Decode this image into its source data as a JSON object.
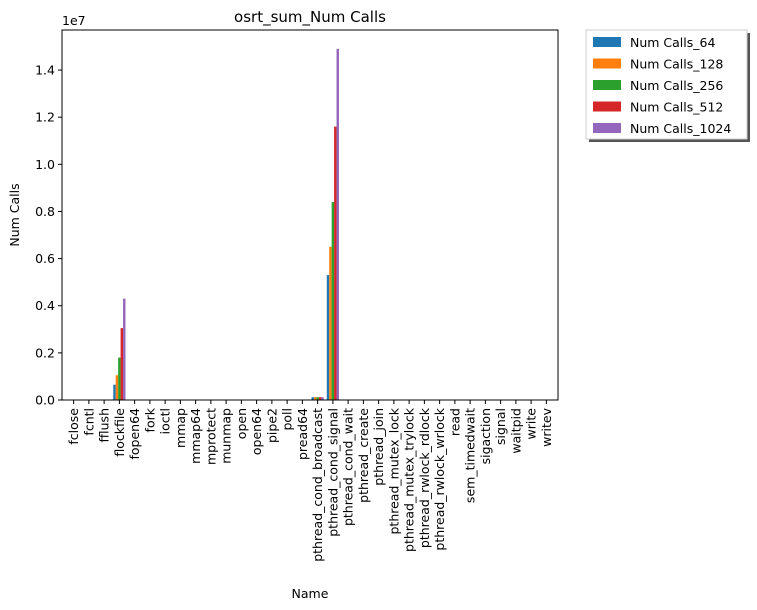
{
  "chart_data": {
    "type": "bar",
    "title": "osrt_sum_Num Calls",
    "xlabel": "Name",
    "ylabel": "Num Calls",
    "y_offset_label": "1e7",
    "ylim": [
      0,
      1.57
    ],
    "yticks": [
      0.0,
      0.2,
      0.4,
      0.6,
      0.8,
      1.0,
      1.2,
      1.4
    ],
    "ytick_labels": [
      "0.0",
      "0.2",
      "0.4",
      "0.6",
      "0.8",
      "1.0",
      "1.2",
      "1.4"
    ],
    "grid": false,
    "legend_position": "outside-top-right",
    "categories": [
      "fclose",
      "fcntl",
      "fflush",
      "flockfile",
      "fopen64",
      "fork",
      "ioctl",
      "mmap",
      "mmap64",
      "mprotect",
      "munmap",
      "open",
      "open64",
      "pipe2",
      "poll",
      "pread64",
      "pthread_cond_broadcast",
      "pthread_cond_signal",
      "pthread_cond_wait",
      "pthread_create",
      "pthread_join",
      "pthread_mutex_lock",
      "pthread_mutex_trylock",
      "pthread_rwlock_rdlock",
      "pthread_rwlock_wrlock",
      "read",
      "sem_timedwait",
      "sigaction",
      "signal",
      "waitpid",
      "write",
      "writev"
    ],
    "series": [
      {
        "name": "Num Calls_64",
        "color": "#1f77b4",
        "values": [
          0,
          0,
          0,
          0.065,
          0,
          0,
          0,
          0,
          0,
          0,
          0,
          0,
          0,
          0,
          0,
          0,
          0.012,
          0.53,
          0,
          0,
          0,
          0,
          0,
          0,
          0,
          0,
          0,
          0,
          0,
          0,
          0,
          0
        ]
      },
      {
        "name": "Num Calls_128",
        "color": "#ff7f0e",
        "values": [
          0,
          0,
          0,
          0.105,
          0,
          0,
          0,
          0,
          0,
          0,
          0,
          0,
          0,
          0,
          0,
          0,
          0.012,
          0.65,
          0,
          0,
          0,
          0,
          0,
          0,
          0,
          0,
          0,
          0,
          0,
          0,
          0,
          0
        ]
      },
      {
        "name": "Num Calls_256",
        "color": "#2ca02c",
        "values": [
          0,
          0,
          0,
          0.18,
          0,
          0,
          0,
          0,
          0,
          0,
          0,
          0,
          0,
          0,
          0,
          0,
          0.012,
          0.84,
          0,
          0,
          0,
          0,
          0,
          0,
          0,
          0,
          0,
          0,
          0,
          0,
          0,
          0
        ]
      },
      {
        "name": "Num Calls_512",
        "color": "#d62728",
        "values": [
          0,
          0,
          0,
          0.305,
          0,
          0,
          0,
          0,
          0,
          0,
          0,
          0,
          0,
          0,
          0,
          0,
          0.012,
          1.16,
          0,
          0,
          0,
          0,
          0,
          0,
          0,
          0,
          0,
          0,
          0,
          0,
          0,
          0
        ]
      },
      {
        "name": "Num Calls_1024",
        "color": "#9467bd",
        "values": [
          0,
          0,
          0,
          0.43,
          0,
          0,
          0,
          0,
          0,
          0,
          0,
          0,
          0,
          0,
          0,
          0,
          0.012,
          1.49,
          0,
          0,
          0,
          0,
          0,
          0,
          0,
          0,
          0,
          0,
          0,
          0,
          0,
          0
        ]
      }
    ]
  }
}
